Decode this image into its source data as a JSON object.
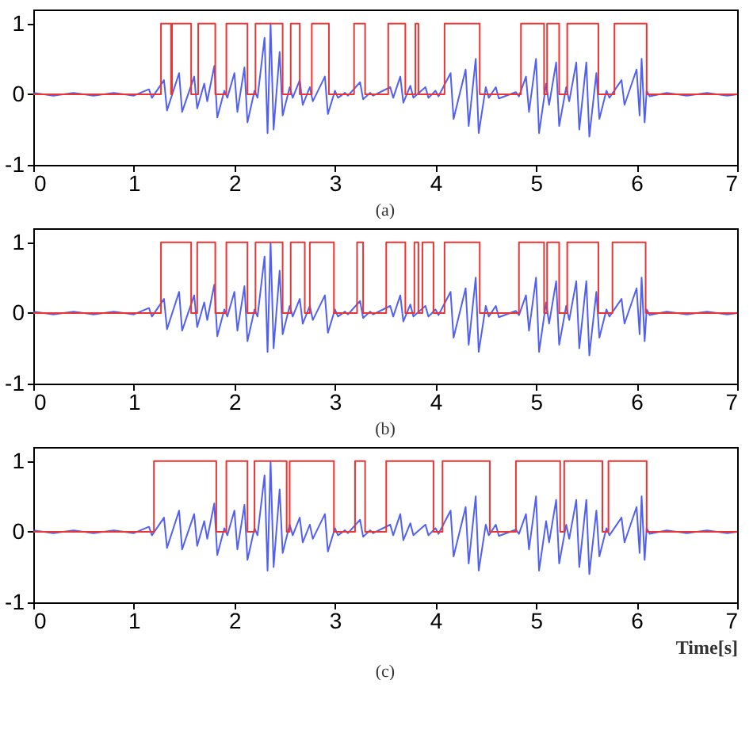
{
  "chart_data": [
    {
      "type": "line",
      "annotations": [
        "(a)"
      ],
      "xlim": [
        0,
        7
      ],
      "ylim": [
        -1,
        1.2
      ],
      "xticks": [
        0,
        1,
        2,
        3,
        4,
        5,
        6,
        7
      ],
      "yticks": [
        -1,
        0,
        1
      ],
      "series": [
        {
          "color": "#3344ee",
          "x": [
            0,
            0.2,
            0.4,
            0.6,
            0.8,
            1.0,
            1.15,
            1.18,
            1.3,
            1.33,
            1.45,
            1.48,
            1.6,
            1.63,
            1.7,
            1.73,
            1.8,
            1.83,
            1.9,
            1.93,
            2.0,
            2.03,
            2.1,
            2.13,
            2.2,
            2.23,
            2.3,
            2.33,
            2.36,
            2.39,
            2.45,
            2.48,
            2.55,
            2.58,
            2.65,
            2.68,
            2.75,
            2.78,
            2.9,
            2.93,
            3.0,
            3.03,
            3.1,
            3.13,
            3.25,
            3.28,
            3.35,
            3.38,
            3.55,
            3.58,
            3.65,
            3.68,
            3.75,
            3.78,
            3.9,
            3.93,
            4.0,
            4.03,
            4.15,
            4.18,
            4.3,
            4.33,
            4.4,
            4.43,
            4.5,
            4.53,
            4.6,
            4.63,
            4.8,
            4.83,
            4.9,
            4.93,
            5.0,
            5.03,
            5.1,
            5.13,
            5.2,
            5.23,
            5.3,
            5.33,
            5.4,
            5.43,
            5.5,
            5.53,
            5.6,
            5.63,
            5.7,
            5.73,
            5.85,
            5.88,
            6.0,
            6.03,
            6.05,
            6.08,
            6.1,
            6.13,
            6.3,
            6.5,
            6.7,
            6.9,
            7.0
          ],
          "values": [
            0.02,
            -0.02,
            0.02,
            -0.02,
            0.02,
            -0.02,
            0.07,
            -0.05,
            0.2,
            -0.23,
            0.3,
            -0.25,
            0.25,
            -0.2,
            0.15,
            -0.1,
            0.4,
            -0.33,
            0.05,
            -0.05,
            0.3,
            -0.25,
            0.38,
            -0.4,
            0.05,
            -0.05,
            0.8,
            -0.55,
            1.0,
            -0.5,
            0.6,
            -0.3,
            0.1,
            -0.05,
            0.2,
            -0.15,
            0.1,
            -0.1,
            0.25,
            -0.28,
            0.05,
            -0.05,
            0.02,
            -0.02,
            0.17,
            -0.07,
            0.02,
            -0.02,
            0.1,
            -0.05,
            0.25,
            -0.12,
            0.12,
            -0.05,
            0.1,
            -0.05,
            0.05,
            -0.03,
            0.3,
            -0.35,
            0.35,
            -0.45,
            0.5,
            -0.55,
            0.1,
            -0.05,
            0.1,
            -0.06,
            0.03,
            -0.03,
            0.25,
            -0.25,
            0.5,
            -0.55,
            0.15,
            -0.15,
            0.45,
            -0.45,
            0.1,
            -0.1,
            0.45,
            -0.5,
            0.45,
            -0.6,
            0.3,
            -0.35,
            0.05,
            -0.05,
            0.2,
            -0.15,
            0.35,
            -0.3,
            0.5,
            -0.4,
            0.05,
            -0.03,
            0.02,
            -0.02,
            0.02,
            -0.02,
            0
          ]
        },
        {
          "type": "step",
          "color": "#ee3333",
          "x": [
            0,
            1.27,
            1.37,
            1.38,
            1.57,
            1.64,
            1.81,
            1.92,
            2.13,
            2.21,
            2.48,
            2.56,
            2.65,
            2.77,
            2.94,
            3.19,
            3.3,
            3.53,
            3.7,
            3.8,
            3.83,
            4.09,
            4.44,
            4.85,
            5.08,
            5.11,
            5.23,
            5.31,
            5.62,
            5.78,
            6.1,
            7
          ],
          "values": [
            0,
            1,
            0,
            1,
            0,
            1,
            0,
            1,
            0,
            1,
            0,
            1,
            0,
            1,
            0,
            1,
            0,
            1,
            0,
            1,
            0,
            1,
            0,
            1,
            0,
            1,
            0,
            1,
            0,
            1,
            0,
            0
          ]
        }
      ]
    },
    {
      "type": "line",
      "annotations": [
        "(b)"
      ],
      "xlim": [
        0,
        7
      ],
      "ylim": [
        -1,
        1.2
      ],
      "xticks": [
        0,
        1,
        2,
        3,
        4,
        5,
        6,
        7
      ],
      "yticks": [
        -1,
        0,
        1
      ],
      "series": [
        {
          "color": "#3344ee",
          "x": [
            0,
            0.2,
            0.4,
            0.6,
            0.8,
            1.0,
            1.15,
            1.18,
            1.3,
            1.33,
            1.45,
            1.48,
            1.6,
            1.63,
            1.7,
            1.73,
            1.8,
            1.83,
            1.9,
            1.93,
            2.0,
            2.03,
            2.1,
            2.13,
            2.2,
            2.23,
            2.3,
            2.33,
            2.36,
            2.39,
            2.45,
            2.48,
            2.55,
            2.58,
            2.65,
            2.68,
            2.75,
            2.78,
            2.9,
            2.93,
            3.0,
            3.03,
            3.1,
            3.13,
            3.25,
            3.28,
            3.35,
            3.38,
            3.55,
            3.58,
            3.65,
            3.68,
            3.75,
            3.78,
            3.9,
            3.93,
            4.0,
            4.03,
            4.15,
            4.18,
            4.3,
            4.33,
            4.4,
            4.43,
            4.5,
            4.53,
            4.6,
            4.63,
            4.8,
            4.83,
            4.9,
            4.93,
            5.0,
            5.03,
            5.1,
            5.13,
            5.2,
            5.23,
            5.3,
            5.33,
            5.4,
            5.43,
            5.5,
            5.53,
            5.6,
            5.63,
            5.7,
            5.73,
            5.85,
            5.88,
            6.0,
            6.03,
            6.05,
            6.08,
            6.1,
            6.13,
            6.3,
            6.5,
            6.7,
            6.9,
            7.0
          ],
          "values": [
            0.02,
            -0.02,
            0.02,
            -0.02,
            0.02,
            -0.02,
            0.07,
            -0.05,
            0.2,
            -0.23,
            0.3,
            -0.25,
            0.25,
            -0.2,
            0.15,
            -0.1,
            0.4,
            -0.33,
            0.05,
            -0.05,
            0.3,
            -0.25,
            0.38,
            -0.4,
            0.05,
            -0.05,
            0.8,
            -0.55,
            1.0,
            -0.5,
            0.6,
            -0.3,
            0.1,
            -0.05,
            0.2,
            -0.15,
            0.1,
            -0.1,
            0.25,
            -0.28,
            0.05,
            -0.05,
            0.02,
            -0.02,
            0.17,
            -0.07,
            0.02,
            -0.02,
            0.1,
            -0.05,
            0.25,
            -0.12,
            0.12,
            -0.05,
            0.1,
            -0.05,
            0.05,
            -0.03,
            0.3,
            -0.35,
            0.35,
            -0.45,
            0.5,
            -0.55,
            0.1,
            -0.05,
            0.1,
            -0.06,
            0.03,
            -0.03,
            0.25,
            -0.25,
            0.5,
            -0.55,
            0.15,
            -0.15,
            0.45,
            -0.45,
            0.1,
            -0.1,
            0.45,
            -0.5,
            0.45,
            -0.6,
            0.3,
            -0.35,
            0.05,
            -0.05,
            0.2,
            -0.15,
            0.35,
            -0.3,
            0.5,
            -0.4,
            0.05,
            -0.03,
            0.02,
            -0.02,
            0.02,
            -0.02,
            0
          ]
        },
        {
          "type": "step",
          "color": "#ee3333",
          "x": [
            0,
            1.27,
            1.57,
            1.63,
            1.81,
            1.92,
            2.13,
            2.21,
            2.48,
            2.56,
            2.7,
            2.75,
            2.99,
            3.22,
            3.28,
            3.51,
            3.7,
            3.79,
            3.83,
            3.87,
            3.98,
            4.09,
            4.44,
            4.83,
            5.08,
            5.11,
            5.23,
            5.31,
            5.62,
            5.76,
            6.09,
            7
          ],
          "values": [
            0,
            1,
            0,
            1,
            0,
            1,
            0,
            1,
            0,
            1,
            0,
            1,
            0,
            1,
            0,
            1,
            0,
            1,
            0,
            1,
            0,
            1,
            0,
            1,
            0,
            1,
            0,
            1,
            0,
            1,
            0,
            0
          ]
        }
      ]
    },
    {
      "type": "line",
      "xlabel": "Time[s]",
      "annotations": [
        "(c)"
      ],
      "xlim": [
        0,
        7
      ],
      "ylim": [
        -1,
        1.2
      ],
      "xticks": [
        0,
        1,
        2,
        3,
        4,
        5,
        6,
        7
      ],
      "yticks": [
        -1,
        0,
        1
      ],
      "series": [
        {
          "color": "#3344ee",
          "x": [
            0,
            0.2,
            0.4,
            0.6,
            0.8,
            1.0,
            1.15,
            1.18,
            1.3,
            1.33,
            1.45,
            1.48,
            1.6,
            1.63,
            1.7,
            1.73,
            1.8,
            1.83,
            1.9,
            1.93,
            2.0,
            2.03,
            2.1,
            2.13,
            2.2,
            2.23,
            2.3,
            2.33,
            2.36,
            2.39,
            2.45,
            2.48,
            2.55,
            2.58,
            2.65,
            2.68,
            2.75,
            2.78,
            2.9,
            2.93,
            3.0,
            3.03,
            3.1,
            3.13,
            3.25,
            3.28,
            3.35,
            3.38,
            3.55,
            3.58,
            3.65,
            3.68,
            3.75,
            3.78,
            3.9,
            3.93,
            4.0,
            4.03,
            4.15,
            4.18,
            4.3,
            4.33,
            4.4,
            4.43,
            4.5,
            4.53,
            4.6,
            4.63,
            4.8,
            4.83,
            4.9,
            4.93,
            5.0,
            5.03,
            5.1,
            5.13,
            5.2,
            5.23,
            5.3,
            5.33,
            5.4,
            5.43,
            5.5,
            5.53,
            5.6,
            5.63,
            5.7,
            5.73,
            5.85,
            5.88,
            6.0,
            6.03,
            6.05,
            6.08,
            6.1,
            6.13,
            6.3,
            6.5,
            6.7,
            6.9,
            7.0
          ],
          "values": [
            0.02,
            -0.02,
            0.02,
            -0.02,
            0.02,
            -0.02,
            0.07,
            -0.05,
            0.2,
            -0.23,
            0.3,
            -0.25,
            0.25,
            -0.2,
            0.15,
            -0.1,
            0.4,
            -0.33,
            0.05,
            -0.05,
            0.3,
            -0.25,
            0.38,
            -0.4,
            0.05,
            -0.05,
            0.8,
            -0.55,
            1.0,
            -0.5,
            0.6,
            -0.3,
            0.1,
            -0.05,
            0.2,
            -0.15,
            0.1,
            -0.1,
            0.25,
            -0.28,
            0.05,
            -0.05,
            0.02,
            -0.02,
            0.17,
            -0.07,
            0.02,
            -0.02,
            0.1,
            -0.05,
            0.25,
            -0.12,
            0.12,
            -0.05,
            0.1,
            -0.05,
            0.05,
            -0.03,
            0.3,
            -0.35,
            0.35,
            -0.45,
            0.5,
            -0.55,
            0.1,
            -0.05,
            0.1,
            -0.06,
            0.03,
            -0.03,
            0.25,
            -0.25,
            0.5,
            -0.55,
            0.15,
            -0.15,
            0.45,
            -0.45,
            0.1,
            -0.1,
            0.45,
            -0.5,
            0.45,
            -0.6,
            0.3,
            -0.35,
            0.05,
            -0.05,
            0.2,
            -0.15,
            0.35,
            -0.3,
            0.5,
            -0.4,
            0.05,
            -0.03,
            0.02,
            -0.02,
            0.02,
            -0.02,
            0
          ]
        },
        {
          "type": "step",
          "color": "#ee3333",
          "x": [
            0,
            1.2,
            1.82,
            1.92,
            2.13,
            2.2,
            2.52,
            2.55,
            2.99,
            3.2,
            3.3,
            3.51,
            3.98,
            4.07,
            4.54,
            4.8,
            5.24,
            5.28,
            5.66,
            5.72,
            6.1,
            7
          ],
          "values": [
            0,
            1,
            0,
            1,
            0,
            1,
            0,
            1,
            0,
            1,
            0,
            1,
            0,
            1,
            0,
            1,
            0,
            1,
            0,
            1,
            0,
            0
          ]
        }
      ]
    }
  ]
}
